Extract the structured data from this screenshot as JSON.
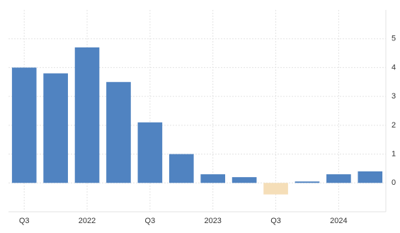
{
  "chart_data": {
    "type": "bar",
    "categories": [
      "Q3",
      null,
      "2022",
      null,
      "Q3",
      null,
      "2023",
      null,
      "Q3",
      null,
      "2024",
      null
    ],
    "values": [
      4.0,
      3.8,
      4.7,
      3.5,
      2.1,
      1.0,
      0.3,
      0.2,
      -0.4,
      0.05,
      0.3,
      0.4
    ],
    "color": "#5083c1",
    "negative_color": "#f5deb8",
    "ylim": [
      -1,
      6
    ],
    "yticks": [
      0,
      1,
      2,
      3,
      4,
      5
    ],
    "grid": true,
    "y_axis_side": "right"
  }
}
